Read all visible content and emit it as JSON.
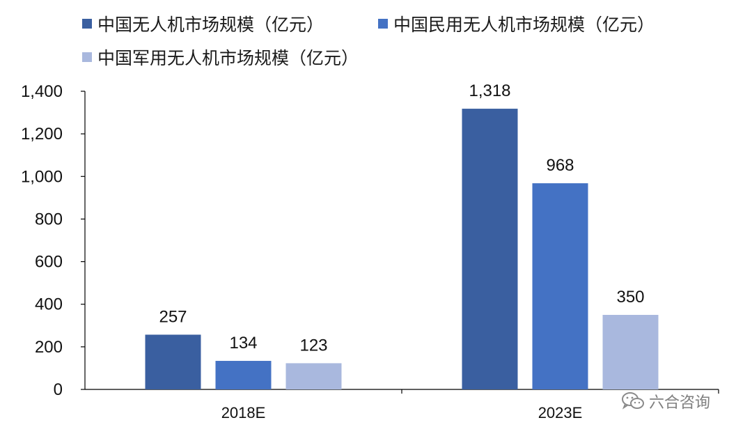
{
  "chart_data": {
    "type": "bar",
    "categories": [
      "2018E",
      "2023E"
    ],
    "series": [
      {
        "name": "中国无人机市场规模（亿元）",
        "color": "#3A5FA0",
        "values": [
          257,
          1318
        ],
        "labels": [
          "257",
          "1,318"
        ]
      },
      {
        "name": "中国民用无人机市场规模（亿元）",
        "color": "#4472C4",
        "values": [
          134,
          968
        ],
        "labels": [
          "134",
          "968"
        ]
      },
      {
        "name": "中国军用无人机市场规模（亿元）",
        "color": "#A9B8DE",
        "values": [
          123,
          350
        ],
        "labels": [
          "123",
          "350"
        ]
      }
    ],
    "ylim": [
      0,
      1400
    ],
    "yticks": [
      0,
      200,
      400,
      600,
      800,
      1000,
      1200,
      1400
    ],
    "ytick_labels": [
      "0",
      "200",
      "400",
      "600",
      "800",
      "1,000",
      "1,200",
      "1,400"
    ],
    "legend_position": "top",
    "grid": false
  },
  "watermark": {
    "text": "六合咨询",
    "icon": "wechat-icon"
  }
}
